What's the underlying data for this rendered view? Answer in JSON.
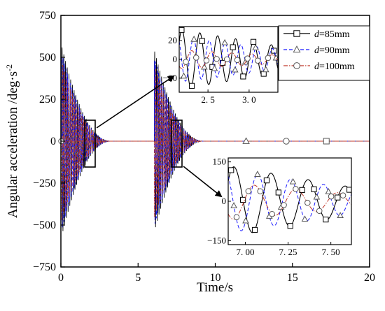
{
  "chart_data": {
    "type": "line",
    "xlabel": "Time/s",
    "ylabel": "Angular acceleration /deg·s",
    "ylabel_superscript": "-2",
    "xlim": [
      0,
      20
    ],
    "ylim": [
      -750,
      750
    ],
    "x_ticks": [
      0,
      5,
      10,
      15,
      20
    ],
    "y_ticks": [
      -750,
      -500,
      -250,
      0,
      250,
      500,
      750
    ],
    "legend_position": "top-right",
    "series": [
      {
        "name": "d=85mm",
        "name_var": "d",
        "name_value": "=85mm",
        "color": "#000000",
        "line_style": "solid",
        "marker": "square"
      },
      {
        "name": "d=90mm",
        "name_var": "d",
        "name_value": "=90mm",
        "color": "#1a1aff",
        "line_style": "dashed",
        "marker": "triangle"
      },
      {
        "name": "d=100mm",
        "name_var": "d",
        "name_value": "=100mm",
        "color": "#c0392b",
        "line_style": "dashdot",
        "marker": "circle"
      }
    ],
    "decay_envelope": {
      "burst_starts": [
        0.05,
        6.05
      ],
      "peak_amplitude": [
        570,
        545
      ],
      "decay_to_zero_at": [
        3.3,
        9.3
      ]
    },
    "far_markers_x": [
      12,
      14.6,
      17.2
    ],
    "insets": [
      {
        "name": "inset-top",
        "source_x_range": [
          1.95,
          2.4
        ],
        "source_y_range": [
          -140,
          130
        ],
        "xlim": [
          2.15,
          3.35
        ],
        "ylim": [
          -35,
          35
        ],
        "x_ticks": [
          2.5,
          3.0
        ],
        "x_tick_labels": [
          "2. 5",
          "3. 0"
        ],
        "y_ticks": [
          -20,
          0,
          20
        ],
        "y_tick_labels": [
          "−20",
          "0",
          "20"
        ]
      },
      {
        "name": "inset-bottom",
        "source_x_range": [
          7.0,
          7.5
        ],
        "source_y_range": [
          -140,
          130
        ],
        "xlim": [
          6.9,
          7.62
        ],
        "ylim": [
          -165,
          165
        ],
        "x_ticks": [
          7.0,
          7.25,
          7.5
        ],
        "x_tick_labels": [
          "7. 00",
          "7. 25",
          "7. 50"
        ],
        "y_ticks": [
          -150,
          0,
          150
        ],
        "y_tick_labels": [
          "−150",
          "0",
          "150"
        ]
      }
    ]
  }
}
